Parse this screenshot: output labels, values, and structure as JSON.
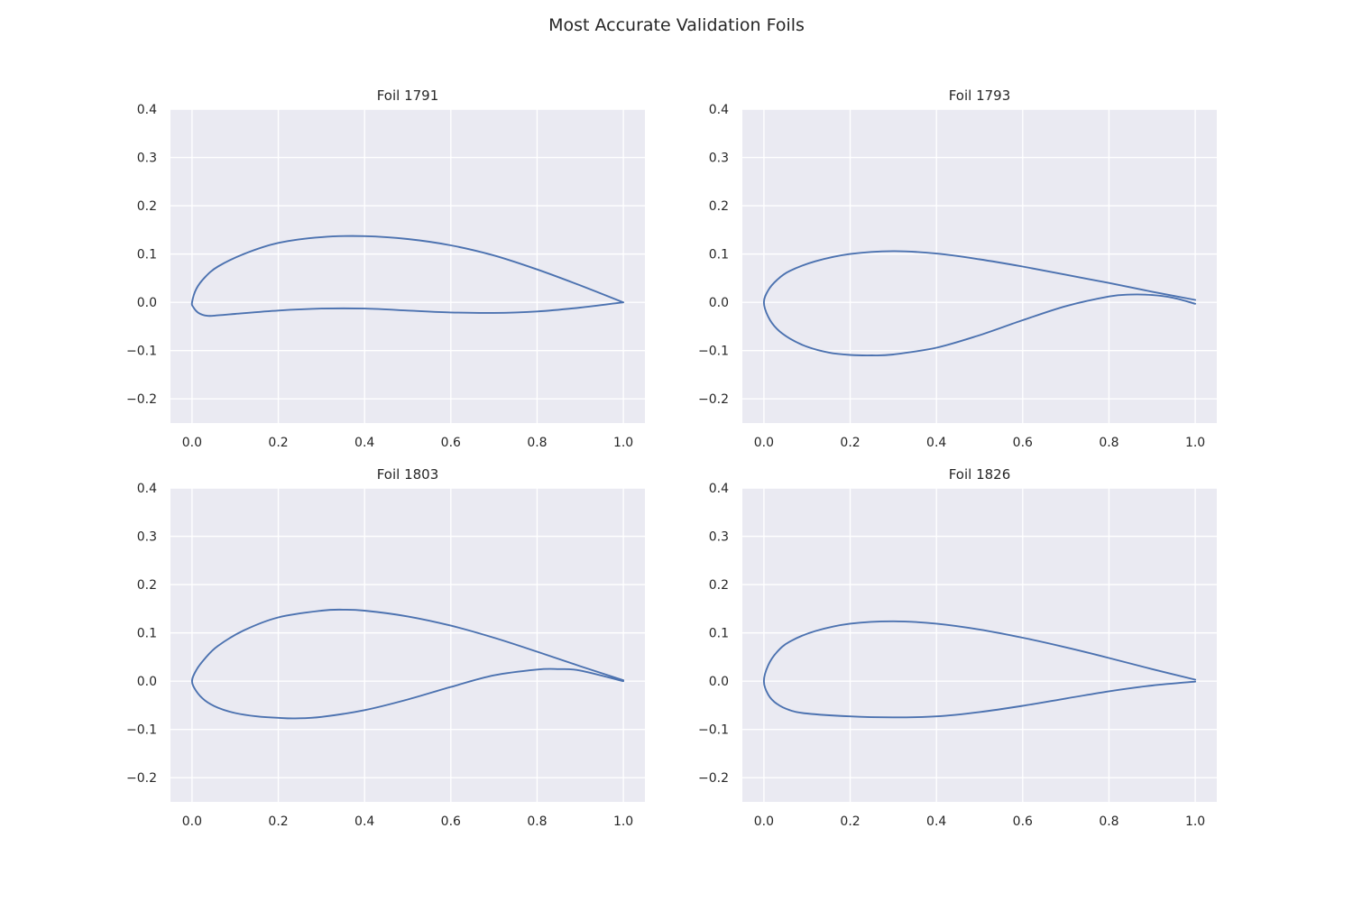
{
  "figure": {
    "suptitle": "Most Accurate Validation Foils"
  },
  "chart_data": [
    {
      "type": "line",
      "title": "Foil 1791",
      "xlim": [
        -0.05,
        1.05
      ],
      "ylim": [
        -0.25,
        0.4
      ],
      "xticks": [
        0.0,
        0.2,
        0.4,
        0.6,
        0.8,
        1.0
      ],
      "xtick_labels": [
        "0.0",
        "0.2",
        "0.4",
        "0.6",
        "0.8",
        "1.0"
      ],
      "yticks": [
        -0.2,
        -0.1,
        0.0,
        0.1,
        0.2,
        0.3,
        0.4
      ],
      "ytick_labels": [
        "−0.2",
        "−0.1",
        "0.0",
        "0.1",
        "0.2",
        "0.3",
        "0.4"
      ],
      "grid": true,
      "series": [
        {
          "color": "#4c72b0",
          "x": [
            1.0,
            0.9,
            0.8,
            0.7,
            0.6,
            0.5,
            0.4,
            0.3,
            0.2,
            0.12,
            0.06,
            0.03,
            0.01,
            0.0,
            0.003,
            0.015,
            0.035,
            0.06,
            0.1,
            0.2,
            0.3,
            0.4,
            0.5,
            0.6,
            0.7,
            0.8,
            0.9,
            1.0
          ],
          "y": [
            0.0,
            0.035,
            0.068,
            0.097,
            0.118,
            0.131,
            0.137,
            0.135,
            0.123,
            0.1,
            0.074,
            0.052,
            0.028,
            0.0,
            -0.01,
            -0.022,
            -0.028,
            -0.027,
            -0.024,
            -0.017,
            -0.013,
            -0.013,
            -0.017,
            -0.021,
            -0.022,
            -0.019,
            -0.011,
            0.0
          ]
        }
      ]
    },
    {
      "type": "line",
      "title": "Foil 1793",
      "xlim": [
        -0.05,
        1.05
      ],
      "ylim": [
        -0.25,
        0.4
      ],
      "xticks": [
        0.0,
        0.2,
        0.4,
        0.6,
        0.8,
        1.0
      ],
      "xtick_labels": [
        "0.0",
        "0.2",
        "0.4",
        "0.6",
        "0.8",
        "1.0"
      ],
      "yticks": [
        -0.2,
        -0.1,
        0.0,
        0.1,
        0.2,
        0.3,
        0.4
      ],
      "ytick_labels": [
        "−0.2",
        "−0.1",
        "0.0",
        "0.1",
        "0.2",
        "0.3",
        "0.4"
      ],
      "grid": true,
      "series": [
        {
          "color": "#4c72b0",
          "x": [
            1.0,
            0.9,
            0.8,
            0.7,
            0.6,
            0.5,
            0.4,
            0.3,
            0.2,
            0.12,
            0.06,
            0.03,
            0.01,
            0.0,
            0.01,
            0.03,
            0.06,
            0.1,
            0.15,
            0.2,
            0.25,
            0.3,
            0.4,
            0.5,
            0.6,
            0.7,
            0.8,
            0.85,
            0.9,
            0.95,
            1.0
          ],
          "y": [
            0.005,
            0.022,
            0.04,
            0.057,
            0.074,
            0.089,
            0.101,
            0.106,
            0.1,
            0.085,
            0.065,
            0.046,
            0.025,
            0.0,
            -0.03,
            -0.055,
            -0.075,
            -0.092,
            -0.104,
            -0.109,
            -0.11,
            -0.108,
            -0.094,
            -0.068,
            -0.037,
            -0.008,
            0.012,
            0.016,
            0.015,
            0.009,
            -0.003
          ]
        }
      ]
    },
    {
      "type": "line",
      "title": "Foil 1803",
      "xlim": [
        -0.05,
        1.05
      ],
      "ylim": [
        -0.25,
        0.4
      ],
      "xticks": [
        0.0,
        0.2,
        0.4,
        0.6,
        0.8,
        1.0
      ],
      "xtick_labels": [
        "0.0",
        "0.2",
        "0.4",
        "0.6",
        "0.8",
        "1.0"
      ],
      "yticks": [
        -0.2,
        -0.1,
        0.0,
        0.1,
        0.2,
        0.3,
        0.4
      ],
      "ytick_labels": [
        "−0.2",
        "−0.1",
        "0.0",
        "0.1",
        "0.2",
        "0.3",
        "0.4"
      ],
      "grid": true,
      "series": [
        {
          "color": "#4c72b0",
          "x": [
            1.0,
            0.9,
            0.8,
            0.7,
            0.6,
            0.5,
            0.4,
            0.35,
            0.3,
            0.2,
            0.12,
            0.06,
            0.03,
            0.01,
            0.0,
            0.01,
            0.03,
            0.06,
            0.1,
            0.15,
            0.2,
            0.24,
            0.3,
            0.4,
            0.5,
            0.6,
            0.7,
            0.8,
            0.85,
            0.9,
            1.0
          ],
          "y": [
            0.002,
            0.031,
            0.061,
            0.09,
            0.115,
            0.134,
            0.146,
            0.148,
            0.146,
            0.132,
            0.105,
            0.073,
            0.047,
            0.023,
            0.0,
            -0.021,
            -0.04,
            -0.055,
            -0.066,
            -0.073,
            -0.076,
            -0.077,
            -0.074,
            -0.06,
            -0.038,
            -0.012,
            0.012,
            0.024,
            0.025,
            0.022,
            0.0
          ]
        }
      ]
    },
    {
      "type": "line",
      "title": "Foil 1826",
      "xlim": [
        -0.05,
        1.05
      ],
      "ylim": [
        -0.25,
        0.4
      ],
      "xticks": [
        0.0,
        0.2,
        0.4,
        0.6,
        0.8,
        1.0
      ],
      "xtick_labels": [
        "0.0",
        "0.2",
        "0.4",
        "0.6",
        "0.8",
        "1.0"
      ],
      "yticks": [
        -0.2,
        -0.1,
        0.0,
        0.1,
        0.2,
        0.3,
        0.4
      ],
      "ytick_labels": [
        "−0.2",
        "−0.1",
        "0.0",
        "0.1",
        "0.2",
        "0.3",
        "0.4"
      ],
      "grid": true,
      "series": [
        {
          "color": "#4c72b0",
          "x": [
            1.0,
            0.9,
            0.8,
            0.7,
            0.6,
            0.5,
            0.4,
            0.3,
            0.2,
            0.12,
            0.06,
            0.03,
            0.01,
            0.0,
            0.01,
            0.03,
            0.06,
            0.1,
            0.2,
            0.3,
            0.4,
            0.5,
            0.6,
            0.7,
            0.8,
            0.9,
            1.0
          ],
          "y": [
            0.003,
            0.025,
            0.048,
            0.07,
            0.09,
            0.107,
            0.119,
            0.124,
            0.119,
            0.104,
            0.082,
            0.06,
            0.033,
            0.0,
            -0.028,
            -0.047,
            -0.06,
            -0.067,
            -0.073,
            -0.075,
            -0.073,
            -0.064,
            -0.051,
            -0.036,
            -0.021,
            -0.009,
            -0.001
          ]
        }
      ]
    }
  ]
}
